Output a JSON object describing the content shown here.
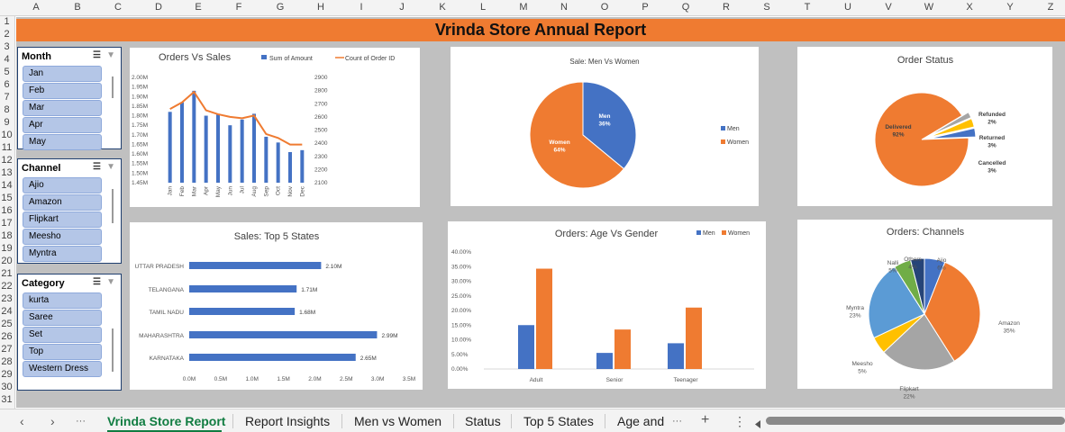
{
  "columns": [
    "A",
    "B",
    "C",
    "D",
    "E",
    "F",
    "G",
    "H",
    "I",
    "J",
    "K",
    "L",
    "M",
    "N",
    "O",
    "P",
    "Q",
    "R",
    "S",
    "T",
    "U",
    "V",
    "W",
    "X",
    "Y",
    "Z"
  ],
  "rows": [
    "1",
    "2",
    "3",
    "4",
    "5",
    "6",
    "7",
    "8",
    "9",
    "10",
    "11",
    "12",
    "13",
    "14",
    "15",
    "16",
    "17",
    "18",
    "19",
    "20",
    "21",
    "22",
    "23",
    "24",
    "25",
    "26",
    "27",
    "28",
    "29",
    "30",
    "31"
  ],
  "banner": "Vrinda Store Annual Report",
  "slicers": {
    "month": {
      "title": "Month",
      "items": [
        "Jan",
        "Feb",
        "Mar",
        "Apr",
        "May"
      ]
    },
    "channel": {
      "title": "Channel",
      "items": [
        "Ajio",
        "Amazon",
        "Flipkart",
        "Meesho",
        "Myntra"
      ]
    },
    "category": {
      "title": "Category",
      "items": [
        "kurta",
        "Saree",
        "Set",
        "Top",
        "Western Dress"
      ]
    }
  },
  "icons": {
    "multi_select": "multi-select-icon",
    "clear_filter": "clear-filter-icon"
  },
  "colors": {
    "accent": "#ef7b31",
    "blue": "#4472c4",
    "gray": "#a5a5a5",
    "yellow": "#ffc000",
    "lightblue": "#5b9bd5",
    "green": "#70ad47",
    "navy": "#264478"
  },
  "chart_data": [
    {
      "id": "orders_vs_sales",
      "type": "bar",
      "title": "Orders Vs Sales",
      "categories": [
        "Jan",
        "Feb",
        "Mar",
        "Apr",
        "May",
        "Jun",
        "Jul",
        "Aug",
        "Sep",
        "Oct",
        "Nov",
        "Dec"
      ],
      "series": [
        {
          "name": "Sum of Amount",
          "type": "bar",
          "axis": "left",
          "values": [
            1.82,
            1.87,
            1.93,
            1.8,
            1.81,
            1.75,
            1.78,
            1.81,
            1.69,
            1.66,
            1.61,
            1.62
          ]
        },
        {
          "name": "Count of Order ID",
          "type": "line",
          "axis": "right",
          "values": [
            2660,
            2710,
            2790,
            2650,
            2620,
            2600,
            2590,
            2610,
            2470,
            2440,
            2390,
            2390
          ]
        }
      ],
      "yticks": [
        "2.00M",
        "1.95M",
        "1.90M",
        "1.85M",
        "1.80M",
        "1.75M",
        "1.70M",
        "1.65M",
        "1.60M",
        "1.55M",
        "1.50M",
        "1.45M"
      ],
      "y2ticks": [
        "2900",
        "2800",
        "2700",
        "2600",
        "2500",
        "2400",
        "2300",
        "2200",
        "2100"
      ],
      "ylim": [
        1.45,
        2.0
      ],
      "y2lim": [
        2100,
        2900
      ],
      "legend": "top"
    },
    {
      "id": "men_vs_women",
      "type": "pie",
      "title": "Sale: Men Vs Women",
      "slices": [
        {
          "name": "Men",
          "value": 36,
          "label": "Men\n36%"
        },
        {
          "name": "Women",
          "value": 64,
          "label": "Women\n64%"
        }
      ],
      "legend": "right"
    },
    {
      "id": "order_status",
      "type": "pie",
      "title": "Order Status",
      "slices": [
        {
          "name": "Delivered",
          "value": 92,
          "label": "Delivered\n92%"
        },
        {
          "name": "Refunded",
          "value": 2,
          "label": "Refunded\n2%"
        },
        {
          "name": "Returned",
          "value": 3,
          "label": "Returned\n3%"
        },
        {
          "name": "Cancelled",
          "value": 3,
          "label": "Cancelled\n3%"
        }
      ]
    },
    {
      "id": "top_states",
      "type": "bar",
      "title": "Sales: Top 5 States",
      "categories": [
        "UTTAR PRADESH",
        "TELANGANA",
        "TAMIL NADU",
        "MAHARASHTRA",
        "KARNATAKA"
      ],
      "values": [
        2.1,
        1.71,
        1.68,
        2.99,
        2.65
      ],
      "labels": [
        "2.10M",
        "1.71M",
        "1.68M",
        "2.99M",
        "2.65M"
      ],
      "xticks": [
        "0.0M",
        "0.5M",
        "1.0M",
        "1.5M",
        "2.0M",
        "2.5M",
        "3.0M",
        "3.5M"
      ],
      "xlim": [
        0,
        3.5
      ]
    },
    {
      "id": "age_vs_gender",
      "type": "bar",
      "title": "Orders: Age Vs Gender",
      "categories": [
        "Adult",
        "Senior",
        "Teenager"
      ],
      "series": [
        {
          "name": "Men",
          "values": [
            15.0,
            5.5,
            8.8
          ]
        },
        {
          "name": "Women",
          "values": [
            34.3,
            13.5,
            21.0
          ]
        }
      ],
      "yticks": [
        "40.00%",
        "35.00%",
        "30.00%",
        "25.00%",
        "20.00%",
        "15.00%",
        "10.00%",
        "5.00%",
        "0.00%"
      ],
      "ylim": [
        0,
        40
      ],
      "legend": "top-right"
    },
    {
      "id": "channels",
      "type": "pie",
      "title": "Orders: Channels",
      "slices": [
        {
          "name": "Ajio",
          "value": 6,
          "label": "Ajio\n6%"
        },
        {
          "name": "Amazon",
          "value": 35,
          "label": "Amazon\n35%"
        },
        {
          "name": "Flipkart",
          "value": 22,
          "label": "Flipkart\n22%"
        },
        {
          "name": "Meesho",
          "value": 5,
          "label": "Meesho\n5%"
        },
        {
          "name": "Myntra",
          "value": 23,
          "label": "Myntra\n23%"
        },
        {
          "name": "Nalli",
          "value": 5,
          "label": "Nalli\n5%"
        },
        {
          "name": "Others",
          "value": 4,
          "label": "Others\n4%"
        }
      ]
    }
  ],
  "tabs": [
    "Vrinda Store Report",
    "Report Insights",
    "Men vs Women",
    "Status",
    "Top 5 States",
    "Age and"
  ],
  "tab_nav": {
    "prev": "‹",
    "next": "›",
    "more_left": "···",
    "more_right": "···",
    "add": "+",
    "menu": "⋮"
  }
}
